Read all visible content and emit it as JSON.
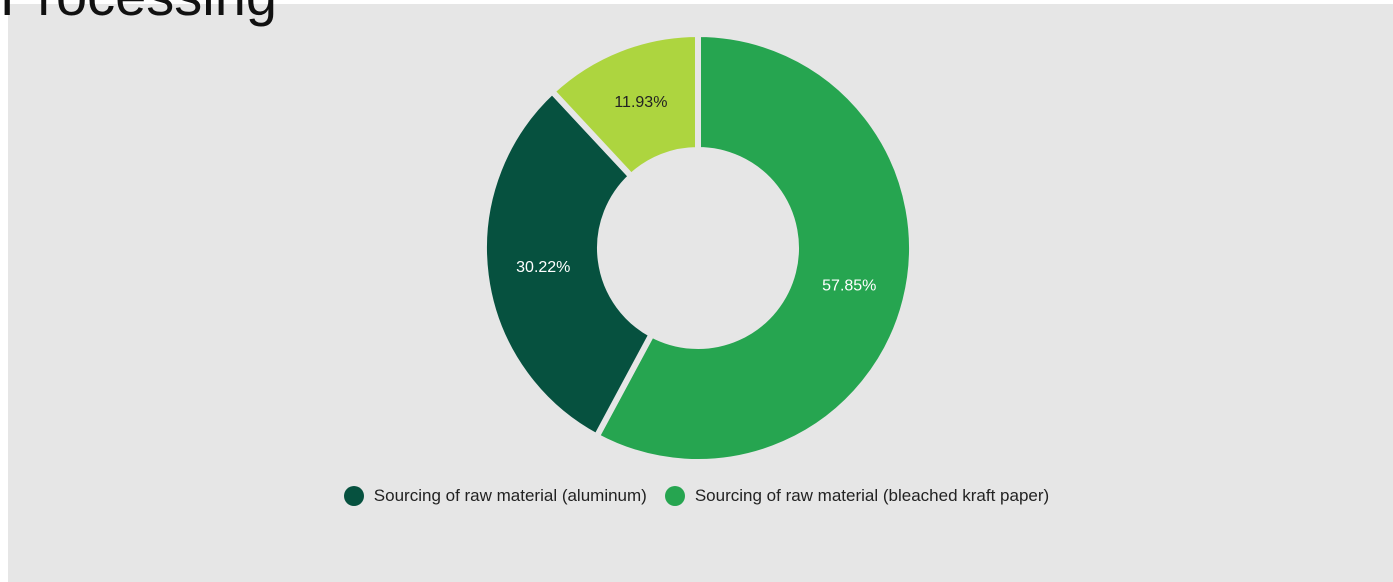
{
  "chart_data": {
    "type": "pie",
    "variant": "donut",
    "title": "Processing",
    "slices": [
      {
        "label": "Sourcing of raw material (bleached kraft paper)",
        "value": 57.85,
        "display": "57.85%",
        "color": "#26a550",
        "label_color": "#ffffff"
      },
      {
        "label": "Sourcing of raw material (aluminum)",
        "value": 30.22,
        "display": "30.22%",
        "color": "#06513f",
        "label_color": "#ffffff"
      },
      {
        "label": "",
        "value": 11.93,
        "display": "11.93%",
        "color": "#add53f",
        "label_color": "#222222"
      }
    ],
    "legend": [
      {
        "label": "Sourcing of raw material (aluminum)",
        "color": "#06513f"
      },
      {
        "label": "Sourcing of raw material (bleached kraft paper)",
        "color": "#26a550"
      }
    ],
    "legend_position": "bottom"
  }
}
